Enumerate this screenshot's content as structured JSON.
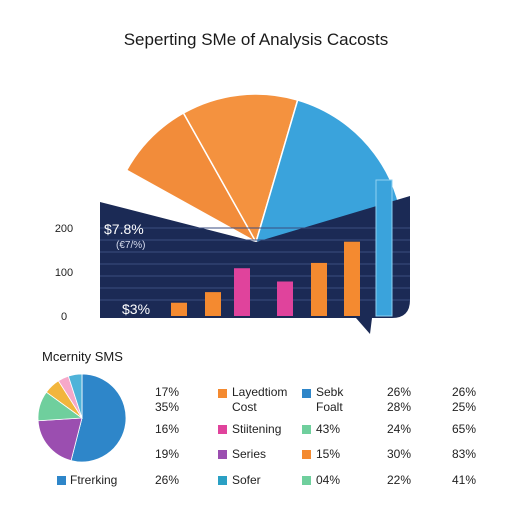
{
  "title": "Seperting SMe of Analysis Cacosts",
  "chart_data": [
    {
      "type": "pie",
      "title": "Seperting SMe of Analysis Cacosts",
      "slices": [
        {
          "label": "",
          "value": 0.09,
          "color": "#f28c3a"
        },
        {
          "label": "",
          "value": 0.13,
          "color": "#f4923f"
        },
        {
          "label": "",
          "value": 0.21,
          "color": "#3aa3dc"
        }
      ],
      "overlay_bars": {
        "type": "bar",
        "yticks": [
          "200",
          "100",
          "0"
        ],
        "ylim": [
          0,
          260
        ],
        "values": [
          25,
          45,
          90,
          65,
          100,
          140,
          95
        ],
        "colors": [
          "#f48a30",
          "#f48a30",
          "#e0439c",
          "#e0439c",
          "#f48a30",
          "#f48a30",
          "#f48a30"
        ],
        "tall_bar_value": 240,
        "annotations": {
          "value": "$7.8%",
          "sub": "(€7/%)",
          "low": "$3%"
        }
      }
    },
    {
      "type": "pie",
      "title": "Mcernity SMS",
      "slices": [
        {
          "label": "",
          "value": 54,
          "color": "#2e86c9"
        },
        {
          "label": "",
          "value": 20,
          "color": "#9b4eb0"
        },
        {
          "label": "",
          "value": 11,
          "color": "#6fcf9d"
        },
        {
          "label": "",
          "value": 6,
          "color": "#f2b53c"
        },
        {
          "label": "",
          "value": 4,
          "color": "#f6a8c9"
        },
        {
          "label": "",
          "value": 5,
          "color": "#4fb3d9"
        }
      ]
    }
  ],
  "table": {
    "rows": [
      {
        "c1": "17%",
        "c1b": "35%",
        "label": "Layedtiom",
        "labelb": "Cost",
        "color": "#f48a30",
        "label2": "Sebk",
        "label2b": "Foalt",
        "color2": "#2e86c9",
        "c3": "26%",
        "c3b": "28%",
        "c4": "26%",
        "c4b": "25%"
      },
      {
        "c1": "16%",
        "label": "Stiitening",
        "color": "#e0439c",
        "label2": "43%",
        "color2": "#6fcf9d",
        "c3": "24%",
        "c4": "65%"
      },
      {
        "c1": "19%",
        "label": "Series",
        "color": "#9b4eb0",
        "label2": "15%",
        "color2": "#f48a30",
        "c3": "30%",
        "c4": "83%"
      },
      {
        "c0": "Ftrerking",
        "color0": "#2e86c9",
        "c1": "26%",
        "label": "Sofer",
        "color": "#2aa0c4",
        "label2": "04%",
        "color2": "#6fcf9d",
        "c3": "22%",
        "c4": "41%"
      }
    ]
  }
}
